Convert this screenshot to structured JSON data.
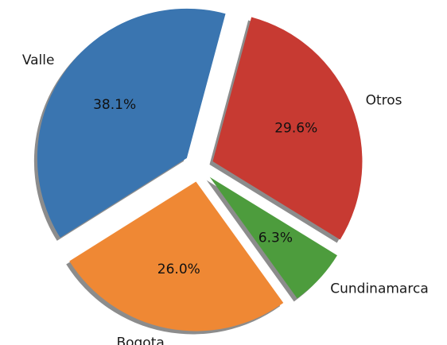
{
  "chart_data": {
    "type": "pie",
    "title": "",
    "slices": [
      {
        "label": "Valle",
        "value": 38.1,
        "pct_label": "38.1%",
        "color": "#3a75b0"
      },
      {
        "label": "Bogota",
        "value": 26.0,
        "pct_label": "26.0%",
        "color": "#ef8834"
      },
      {
        "label": "Cundinamarca",
        "value": 6.3,
        "pct_label": "6.3%",
        "color": "#4d9c3d"
      },
      {
        "label": "Otros",
        "value": 29.6,
        "pct_label": "29.6%",
        "color": "#c73a32"
      }
    ],
    "explode": [
      0.1,
      0.1,
      0.1,
      0.1
    ],
    "start_angle_deg": 75,
    "direction": "counterclockwise",
    "shadow": true
  }
}
